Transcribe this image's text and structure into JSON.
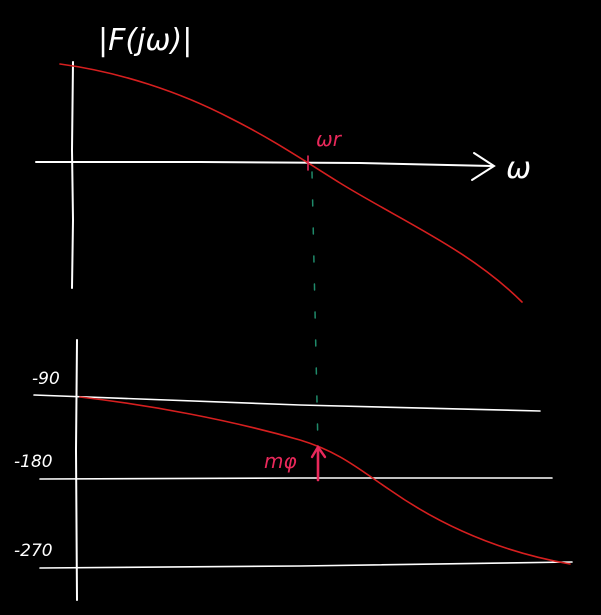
{
  "magnitude_plot": {
    "y_axis_label": "|F(jω)|",
    "x_axis_label": "ω",
    "crossover_label": "ωr"
  },
  "phase_plot": {
    "ticks": [
      {
        "label": "-90",
        "value": -90
      },
      {
        "label": "-180",
        "value": -180
      },
      {
        "label": "-270",
        "value": -270
      }
    ],
    "margin_label": "mφ"
  },
  "colors": {
    "background": "#000000",
    "ink": "#ffffff",
    "curve": "#d61f1f",
    "annotation": "#e8285a",
    "guide": "#1f8a6a"
  }
}
